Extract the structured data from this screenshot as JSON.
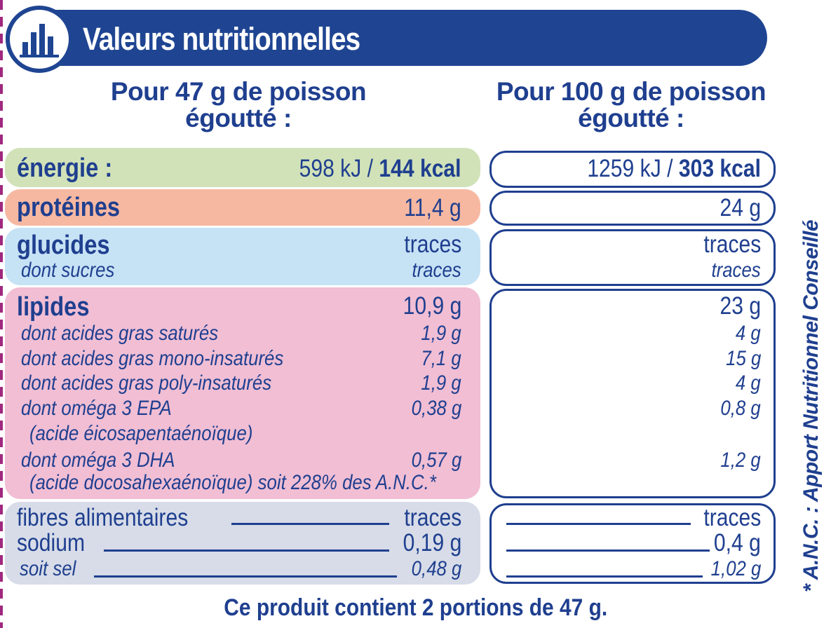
{
  "header": {
    "title": "Valeurs nutritionnelles",
    "icon": "bar-chart-icon"
  },
  "columns": {
    "portion": {
      "line1": "Pour 47 g de poisson",
      "line2": "égoutté :"
    },
    "per100": {
      "line1": "Pour 100 g de poisson",
      "line2": "égoutté :"
    }
  },
  "energy": {
    "label": "énergie :",
    "portion_kj": "598 kJ / ",
    "portion_kcal": "144 kcal",
    "per100_kj": "1259 kJ / ",
    "per100_kcal": "303 kcal"
  },
  "proteins": {
    "label": "protéines",
    "portion": "11,4 g",
    "per100": "24 g"
  },
  "carbs": {
    "label": "glucides",
    "portion": "traces",
    "per100": "traces",
    "sugars_label": "dont sucres",
    "sugars_portion": "traces",
    "sugars_per100": "traces"
  },
  "fats": {
    "label": "lipides",
    "portion": "10,9 g",
    "per100": "23 g",
    "sat_label": "dont acides gras saturés",
    "sat_portion": "1,9 g",
    "sat_per100": "4 g",
    "mono_label": "dont acides gras mono-insaturés",
    "mono_portion": "7,1 g",
    "mono_per100": "15 g",
    "poly_label": "dont acides gras poly-insaturés",
    "poly_portion": "1,9 g",
    "poly_per100": "4 g",
    "epa_label": "dont oméga 3 EPA",
    "epa_portion": "0,38 g",
    "epa_per100": "0,8 g",
    "epa_sub": "(acide éicosapentaénoïque)",
    "dha_label": "dont oméga 3 DHA",
    "dha_portion": "0,57 g",
    "dha_per100": "1,2 g",
    "dha_sub": "(acide docosahexaénoïque)  soit 228% des A.N.C.*"
  },
  "other": {
    "fibre_label": "fibres alimentaires",
    "fibre_portion": "traces",
    "fibre_per100": "traces",
    "sodium_label": "sodium",
    "sodium_portion": "0,19 g",
    "sodium_per100": "0,4 g",
    "salt_label": "soit sel",
    "salt_portion": "0,48 g",
    "salt_per100": "1,02 g"
  },
  "side_note": "* A.N.C. : Apport Nutritionnel Conseillé",
  "footer": "Ce produit contient 2 portions de 47 g.",
  "colors": {
    "brand_blue": "#1f4592",
    "text_blue": "#1f3f8f",
    "energy_band": "#d1e2b8",
    "protein_band": "#f6b8a1",
    "carb_band": "#c6e2f5",
    "fat_band": "#f1bed4",
    "other_band": "#d7dce8"
  }
}
